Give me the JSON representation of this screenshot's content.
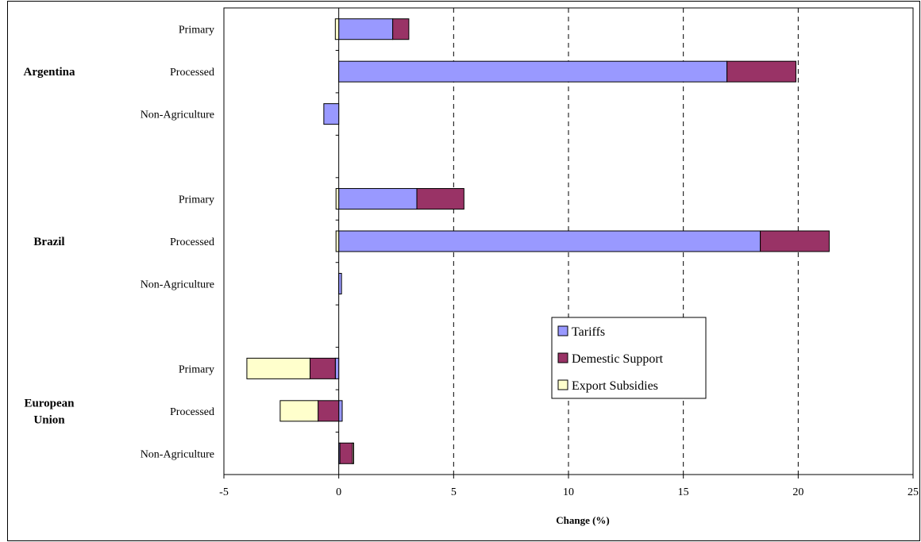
{
  "chart_data": {
    "type": "bar",
    "orientation": "horizontal",
    "stacked": true,
    "xlabel": "Change (%)",
    "xlim": [
      -5,
      25
    ],
    "xticks": [
      "-5",
      "0",
      "5",
      "10",
      "15",
      "20",
      "25"
    ],
    "grid": "vertical-dashed",
    "legend_placement": "center-right",
    "groups": [
      {
        "name": "Argentina",
        "categories": [
          "Primary",
          "Processed",
          "Non-Agriculture"
        ]
      },
      {
        "name": "Brazil",
        "categories": [
          "Primary",
          "Processed",
          "Non-Agriculture"
        ]
      },
      {
        "name": "European\nUnion",
        "categories": [
          "Primary",
          "Processed",
          "Non-Agriculture"
        ]
      }
    ],
    "series": [
      {
        "name": "Tariffs",
        "color": "#9999ff",
        "values": [
          2.35,
          16.9,
          -0.65,
          3.4,
          18.35,
          0.12,
          -0.15,
          0.15,
          0.05
        ]
      },
      {
        "name": "Demestic Support",
        "color": "#993366",
        "values": [
          0.7,
          3.0,
          0.0,
          2.05,
          3.0,
          0.0,
          -1.1,
          -0.9,
          0.55
        ]
      },
      {
        "name": "Export Subsidies",
        "color": "#ffffcc",
        "values": [
          -0.15,
          0.0,
          0.0,
          -0.12,
          -0.12,
          0.0,
          -2.75,
          -1.65,
          0.05
        ]
      }
    ]
  }
}
